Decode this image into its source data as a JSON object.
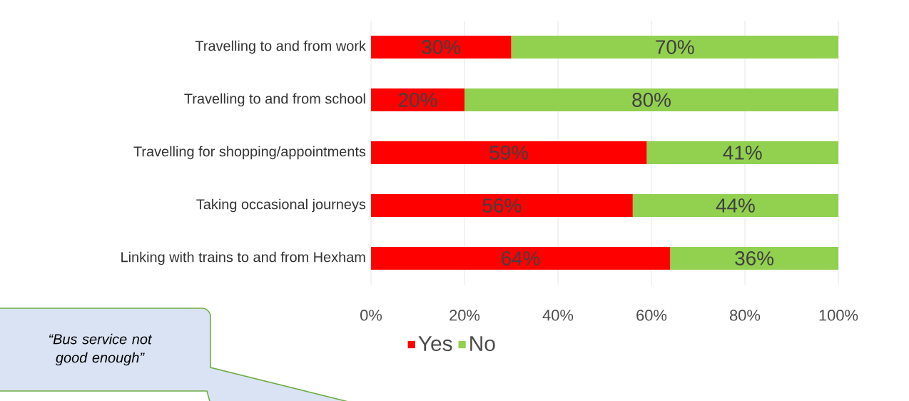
{
  "chart_data": {
    "type": "bar",
    "orientation": "horizontal",
    "stacked": true,
    "categories": [
      "Travelling to and from work",
      "Travelling to and from school",
      "Travelling for shopping/appointments",
      "Taking occasional journeys",
      "Linking with trains to and from Hexham"
    ],
    "series": [
      {
        "name": "Yes",
        "color": "#ff0000",
        "values": [
          30,
          20,
          59,
          56,
          64
        ],
        "value_labels": [
          "30%",
          "20%",
          "59%",
          "56%",
          "64%"
        ]
      },
      {
        "name": "No",
        "color": "#92d050",
        "values": [
          70,
          80,
          41,
          44,
          36
        ],
        "value_labels": [
          "70%",
          "80%",
          "41%",
          "44%",
          "36%"
        ]
      }
    ],
    "xlim": [
      0,
      100
    ],
    "xticks": [
      {
        "value": 0,
        "label": "0%"
      },
      {
        "value": 20,
        "label": "20%"
      },
      {
        "value": 40,
        "label": "40%"
      },
      {
        "value": 60,
        "label": "60%"
      },
      {
        "value": 80,
        "label": "80%"
      },
      {
        "value": 100,
        "label": "100%"
      }
    ],
    "grid": "x",
    "legend": "bottom",
    "annotations": [
      "“Bus service not good enough”"
    ]
  }
}
